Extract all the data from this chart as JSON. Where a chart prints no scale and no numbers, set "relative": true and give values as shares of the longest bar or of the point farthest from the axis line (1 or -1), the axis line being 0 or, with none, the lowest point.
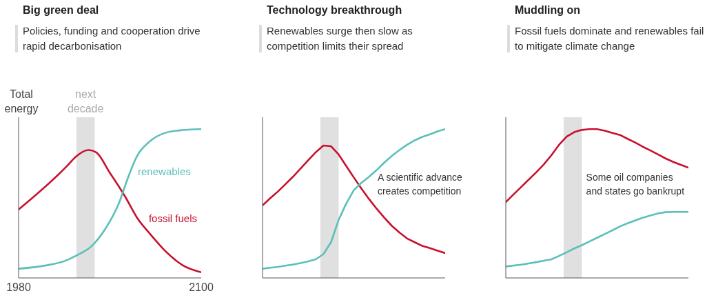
{
  "chart_data": [
    {
      "type": "line",
      "title": "Big green deal",
      "subtitle": "Policies, funding and cooperation drive rapid decarbonisation",
      "ylabel": "Total energy",
      "relative": true,
      "xlim": [
        1980,
        2100
      ],
      "xticks": [
        1980,
        2100
      ],
      "tick_labels": "x",
      "bands": [
        {
          "axis": "x",
          "from": 2018,
          "to": 2030,
          "label": "next decade",
          "color": "#e0e0e0"
        }
      ],
      "series": [
        {
          "name": "fossil fuels",
          "color": "#c8102e",
          "x": [
            1980,
            2011.6,
            2017.6,
            2026,
            2031,
            2040,
            2050,
            2058,
            2066,
            2076,
            2088,
            2100
          ],
          "values": [
            0.46,
            0.75,
            0.815,
            0.86,
            0.844,
            0.706,
            0.547,
            0.402,
            0.3,
            0.185,
            0.084,
            0.038
          ]
        },
        {
          "name": "renewables",
          "color": "#5bbfba",
          "x": [
            1980,
            1998,
            2010,
            2019,
            2028,
            2037,
            2046,
            2052,
            2058,
            2066,
            2076,
            2088,
            2100
          ],
          "values": [
            0.062,
            0.084,
            0.113,
            0.156,
            0.214,
            0.33,
            0.504,
            0.677,
            0.822,
            0.916,
            0.974,
            0.994,
            1
          ]
        }
      ]
    },
    {
      "type": "line",
      "title": "Technology breakthrough",
      "subtitle": "Renewables surge then slow as competition limits their spread",
      "relative": true,
      "tick_labels": false,
      "categories": [
        null,
        null,
        null,
        null,
        null,
        null,
        null,
        null,
        null,
        null,
        null,
        null,
        null,
        null,
        null,
        null,
        null,
        null,
        null,
        null,
        null,
        null,
        null,
        null,
        null
      ],
      "annotations": [
        "A scientific advance creates competition"
      ],
      "series": [
        {
          "color": "#c8102e",
          "values": [
            0.488,
            0.535,
            0.58,
            0.63,
            0.68,
            0.735,
            0.791,
            0.845,
            0.89,
            0.885,
            0.83,
            0.752,
            0.675,
            0.6,
            0.53,
            0.465,
            0.405,
            0.35,
            0.305,
            0.265,
            0.24,
            0.215,
            0.2,
            0.183,
            0.167
          ]
        },
        {
          "color": "#5bbfba",
          "values": [
            0.062,
            0.068,
            0.074,
            0.082,
            0.09,
            0.1,
            0.111,
            0.125,
            0.16,
            0.24,
            0.39,
            0.5,
            0.59,
            0.64,
            0.68,
            0.725,
            0.775,
            0.82,
            0.86,
            0.895,
            0.925,
            0.948,
            0.965,
            0.985,
            1
          ]
        }
      ]
    },
    {
      "type": "line",
      "title": "Muddling on",
      "subtitle": "Fossil fuels dominate and renewables fail to mitigate climate change",
      "relative": true,
      "tick_labels": false,
      "categories": [
        null,
        null,
        null,
        null,
        null,
        null,
        null,
        null,
        null,
        null,
        null,
        null,
        null,
        null,
        null,
        null,
        null,
        null,
        null,
        null,
        null,
        null,
        null,
        null,
        null
      ],
      "annotations": [
        "Some oil companies and states go bankrupt"
      ],
      "series": [
        {
          "color": "#c8102e",
          "values": [
            0.509,
            0.56,
            0.61,
            0.66,
            0.71,
            0.763,
            0.825,
            0.895,
            0.95,
            0.98,
            0.995,
            1,
            1,
            0.99,
            0.975,
            0.961,
            0.935,
            0.91,
            0.882,
            0.857,
            0.83,
            0.803,
            0.78,
            0.76,
            0.741
          ]
        },
        {
          "color": "#5bbfba",
          "values": [
            0.077,
            0.083,
            0.089,
            0.097,
            0.106,
            0.116,
            0.125,
            0.148,
            0.172,
            0.198,
            0.22,
            0.245,
            0.27,
            0.295,
            0.32,
            0.346,
            0.367,
            0.386,
            0.404,
            0.42,
            0.433,
            0.442,
            0.444,
            0.444,
            0.444
          ]
        }
      ]
    }
  ]
}
